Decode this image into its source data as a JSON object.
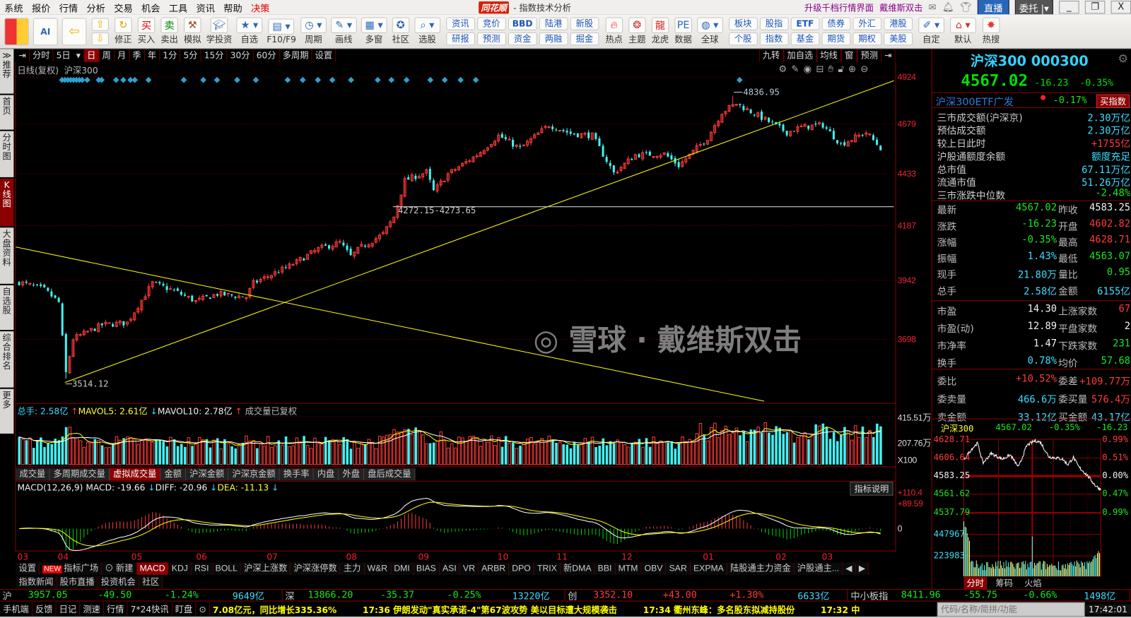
{
  "colors": {
    "up": "#ff3a3a",
    "down": "#44f0f0",
    "accent": "#8b0000",
    "trend": "#ffff00"
  },
  "menu": {
    "items": [
      "系统",
      "报价",
      "行情",
      "分析",
      "交易",
      "机会",
      "工具",
      "资讯",
      "帮助",
      "决策"
    ],
    "brand": "同花顺",
    "window_title": "- 指数技术分析",
    "promo1": "升级千档行情界面",
    "promo2": "戴维斯双击",
    "live": "直播",
    "entrust": "委托"
  },
  "toolbar": {
    "icons": [
      {
        "label": "修正",
        "icon": "refresh-icon"
      },
      {
        "label": "买入",
        "icon": "buy-icon"
      },
      {
        "label": "卖出",
        "icon": "sell-icon"
      },
      {
        "label": "模拟",
        "icon": "gavel-icon"
      },
      {
        "label": "学投资",
        "icon": "graduation-cap-icon"
      },
      {
        "label": "自选",
        "icon": "star-folder-icon"
      },
      {
        "label": "F10/F9",
        "icon": "document-icon"
      },
      {
        "label": "周期",
        "icon": "clock-icon"
      },
      {
        "label": "画线",
        "icon": "pencil-icon"
      },
      {
        "label": "多窗",
        "icon": "windows-icon"
      },
      {
        "label": "社区",
        "icon": "community-icon"
      },
      {
        "label": "选股",
        "icon": "stock-search-icon"
      }
    ],
    "grid1": [
      [
        "资讯",
        "研报"
      ],
      [
        "竞价",
        "预测"
      ],
      [
        "BBD",
        "资金"
      ],
      [
        "陆港",
        "两融"
      ],
      [
        "新股",
        "掘金"
      ]
    ],
    "icons2": [
      {
        "label": "热点",
        "icon": "hot-icon"
      },
      {
        "label": "主题",
        "icon": "theme-icon"
      },
      {
        "label": "龙虎",
        "icon": "dragon-icon"
      },
      {
        "label": "数据",
        "icon": "pe-data-icon"
      },
      {
        "label": "全球",
        "icon": "globe-icon"
      }
    ],
    "grid2": [
      [
        "板块",
        "个股"
      ],
      [
        "股指",
        "指数"
      ],
      [
        "ETF",
        "基金"
      ],
      [
        "债券",
        "期货"
      ],
      [
        "外汇",
        "期权"
      ],
      [
        "港股",
        "美股"
      ]
    ],
    "icons3": [
      {
        "label": "自定",
        "icon": "customize-icon"
      },
      {
        "label": "默认",
        "icon": "home-icon"
      },
      {
        "label": "热搜",
        "icon": "hot-search-icon"
      }
    ],
    "buy_glyph": "买",
    "sell_glyph": "卖"
  },
  "left_tabs": [
    "≫推荐",
    "首页",
    "分时图",
    "K线图",
    "大盘资料",
    "自选股",
    "综合排名",
    "更多"
  ],
  "period": {
    "items": [
      "分时",
      "5日",
      "日",
      "周",
      "月",
      "季",
      "年",
      "1分",
      "5分",
      "15分",
      "30分",
      "60分",
      "多周期",
      "设置"
    ],
    "selected": "日",
    "right": [
      "九转",
      "加自选",
      "均线",
      "窗",
      "预测"
    ]
  },
  "chart": {
    "title": "日线(复权)",
    "name": "沪深300",
    "y_ticks": [
      "4924",
      "4679",
      "4433",
      "4187",
      "3942",
      "3698"
    ],
    "high_label": "4836.95",
    "low_label": "3514.12",
    "line_label": "4272.15-4273.65",
    "months": [
      "03",
      "04",
      "05",
      "06",
      "07",
      "08",
      "09",
      "10",
      "11",
      "12",
      "01",
      "02",
      "03"
    ]
  },
  "volume": {
    "total": "总手: 2.58亿",
    "mavol5": "MAVOL5: 2.61亿",
    "mavol10": "MAVOL10: 2.78亿",
    "note": "成交量已复权",
    "y_ticks": [
      "415.51万",
      "207.76万",
      "X100"
    ],
    "tabs": [
      "成交量",
      "多周期成交量",
      "虚拟成交量",
      "金额",
      "沪深金额",
      "沪深京金额",
      "换手率",
      "内盘",
      "外盘",
      "盘后成交量"
    ],
    "selected": "虚拟成交量"
  },
  "macd": {
    "name": "MACD(12,26,9)",
    "macd": "MACD: -19.66",
    "diff": "DIFF: -20.96",
    "dea": "DEA: -11.13",
    "help": "指标说明",
    "y_ticks": [
      "+110.4",
      "+89.59",
      "0"
    ]
  },
  "indicators": {
    "settings": "设置",
    "new_badge": "NEW",
    "plaza": "指标广场",
    "create": "新建",
    "tabs": [
      "MACD",
      "KDJ",
      "RSI",
      "BOLL",
      "沪深上涨数",
      "沪深涨停数",
      "主力",
      "W&R",
      "DMI",
      "BIAS",
      "ASI",
      "VR",
      "ARBR",
      "DPO",
      "TRIX",
      "新DMA",
      "BBI",
      "MTM",
      "OBV",
      "SAR",
      "EXPMA",
      "陆股通主力资金",
      "沪股通主..."
    ],
    "selected": "MACD",
    "row2": [
      "指数新闻",
      "股市直播",
      "投资机会",
      "社区"
    ]
  },
  "index_bar": [
    {
      "name": "沪",
      "price": "3957.05",
      "chg": "-49.50",
      "pct": "-1.24%",
      "amount": "9649亿",
      "dir": "down"
    },
    {
      "name": "深",
      "price": "13866.20",
      "chg": "-35.37",
      "pct": "-0.25%",
      "amount": "13220亿",
      "dir": "down"
    },
    {
      "name": "创",
      "price": "3352.10",
      "chg": "+43.00",
      "pct": "+1.30%",
      "amount": "6633亿",
      "dir": "up"
    },
    {
      "name": "中小板指",
      "price": "8411.96",
      "chg": "-55.75",
      "pct": "-0.66%",
      "amount": "1498亿",
      "dir": "down"
    }
  ],
  "status": {
    "items": [
      "手机端",
      "反馈",
      "日记",
      "测速",
      "行情",
      "7*24快讯",
      "盯盘"
    ],
    "ticker": "7.08亿元，同比增长335.36%　　　17:36 伊朗发动\"真实承诺-4\"第67波攻势 美以目标遭大规模袭击　　　17:34 衢州东峰：多名股东拟减持股份　　　17:32 中",
    "search_placeholder": "代码/名称/简拼/功能",
    "time": "17:42:01"
  },
  "panel": {
    "title": "沪深300 000300",
    "price": "4567.02",
    "change": "-16.23",
    "pct": "-0.35%",
    "etf": {
      "name": "沪深300ETF广发",
      "pct": "-0.17%",
      "button": "买指数"
    },
    "info": [
      {
        "label": "三市成交额(沪深京)",
        "value": "2.30万亿",
        "color": "cyan"
      },
      {
        "label": "预估成交额",
        "value": "2.30万亿",
        "color": "cyan"
      },
      {
        "label": "较上日此时",
        "value": "+1755亿",
        "color": "red"
      },
      {
        "label": "沪股通额度余额",
        "value": "额度充足",
        "color": "cyan"
      },
      {
        "label": "总市值",
        "value": "67.11万亿",
        "color": "cyan"
      },
      {
        "label": "流通市值",
        "value": "51.26万亿",
        "color": "cyan"
      },
      {
        "label": "三市涨跌中位数",
        "value": "-2.48%",
        "color": "green"
      }
    ],
    "quote": [
      [
        {
          "l": "最新",
          "v": "4567.02",
          "c": "green"
        },
        {
          "l": "昨收",
          "v": "4583.25",
          "c": "white"
        }
      ],
      [
        {
          "l": "涨跌",
          "v": "-16.23",
          "c": "green"
        },
        {
          "l": "开盘",
          "v": "4602.82",
          "c": "red"
        }
      ],
      [
        {
          "l": "涨幅",
          "v": "-0.35%",
          "c": "green"
        },
        {
          "l": "最高",
          "v": "4628.71",
          "c": "red"
        }
      ],
      [
        {
          "l": "振幅",
          "v": "1.43%",
          "c": "cyan"
        },
        {
          "l": "最低",
          "v": "4563.07",
          "c": "green"
        }
      ],
      [
        {
          "l": "现手",
          "v": "21.80万",
          "c": "cyan"
        },
        {
          "l": "量比",
          "v": "0.95",
          "c": "green"
        }
      ],
      [
        {
          "l": "总手",
          "v": "2.58亿",
          "c": "cyan"
        },
        {
          "l": "金额",
          "v": "6155亿",
          "c": "cyan"
        }
      ]
    ],
    "valuation": [
      [
        {
          "l": "市盈",
          "v": "14.30",
          "c": "white"
        },
        {
          "l": "上涨家数",
          "v": "67",
          "c": "red"
        }
      ],
      [
        {
          "l": "市盈(动)",
          "v": "12.89",
          "c": "white"
        },
        {
          "l": "平盘家数",
          "v": "2",
          "c": "white"
        }
      ],
      [
        {
          "l": "市净率",
          "v": "1.47",
          "c": "white"
        },
        {
          "l": "下跌家数",
          "v": "231",
          "c": "green"
        }
      ],
      [
        {
          "l": "换手",
          "v": "0.78%",
          "c": "cyan"
        },
        {
          "l": "均价",
          "v": "57.68",
          "c": "green"
        }
      ]
    ],
    "orders": [
      [
        {
          "l": "委比",
          "v": "+10.52%",
          "c": "red"
        },
        {
          "l": "委差",
          "v": "+109.77万",
          "c": "red"
        }
      ],
      [
        {
          "l": "委卖量",
          "v": "466.6万",
          "c": "cyan"
        },
        {
          "l": "委买量",
          "v": "576.4万",
          "c": "red"
        }
      ],
      [
        {
          "l": "卖金额",
          "v": "33.12亿",
          "c": "cyan"
        },
        {
          "l": "买金额",
          "v": "43.17亿",
          "c": "cyan"
        }
      ]
    ],
    "intraday": {
      "name": "沪深300",
      "price": "4567.02",
      "pct": "-0.35%",
      "chg": "-16.23",
      "left_ticks": [
        {
          "v": "4628.71",
          "c": "red"
        },
        {
          "v": "4606.64",
          "c": "red"
        },
        {
          "v": "4583.25",
          "c": "white"
        },
        {
          "v": "4561.62",
          "c": "green"
        },
        {
          "v": "4537.79",
          "c": "green"
        }
      ],
      "right_ticks": [
        {
          "v": "0.99%",
          "c": "red"
        },
        {
          "v": "0.51%",
          "c": "red"
        },
        {
          "v": "0.00%",
          "c": "white"
        },
        {
          "v": "0.47%",
          "c": "green"
        },
        {
          "v": "0.99%",
          "c": "green"
        }
      ],
      "vol_ticks": [
        "447967",
        "223983"
      ]
    },
    "bottom_tabs": [
      "分时",
      "筹码",
      "火焰"
    ]
  },
  "watermark": "雪球 · 戴维斯双击"
}
